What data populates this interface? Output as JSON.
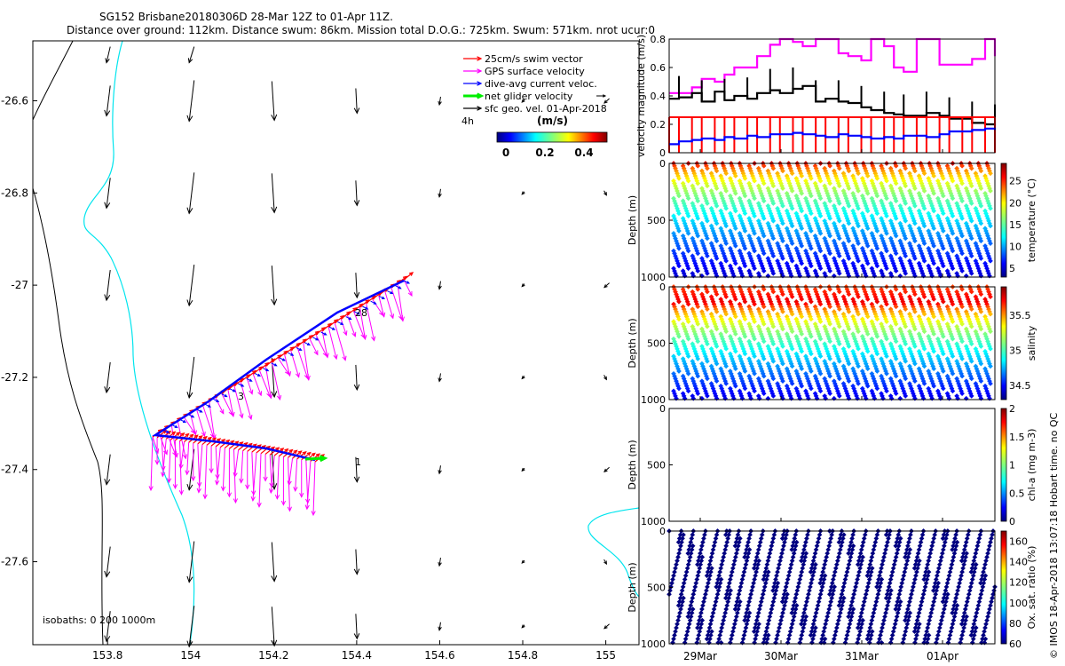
{
  "header": {
    "line1": "SG152 Brisbane20180306D 28-Mar 12Z to 01-Apr 11Z.",
    "line2": "Distance over ground: 112km. Distance swum: 86km. Mission total D.O.G.: 725km. Swum: 571km. nrot ucur:0"
  },
  "credit": "© IMOS 18-Apr-2018 13:07:18 Hobart time. no QC",
  "map": {
    "lon_ticks": [
      "153.8",
      "154",
      "154.2",
      "154.4",
      "154.6",
      "154.8",
      "155"
    ],
    "lat_ticks": [
      "-26.6",
      "-26.8",
      "-27",
      "-27.2",
      "-27.4",
      "-27.6"
    ],
    "lon_range": [
      153.62,
      155.08
    ],
    "lat_range": [
      -27.78,
      -26.47
    ],
    "isobath_label": "isobaths: 0   200  1000m",
    "time_markers": [
      "28",
      "3",
      "1"
    ],
    "legend": [
      {
        "label": "25cm/s swim vector",
        "color": "#ff0000"
      },
      {
        "label": "GPS surface velocity",
        "color": "#ff00ff"
      },
      {
        "label": "dive-avg current veloc.",
        "color": "#0000ff"
      },
      {
        "label": "net glider velocity",
        "color": "#00ee00"
      },
      {
        "label": "sfc geo. vel. 01-Apr-2018",
        "color": "#000000"
      }
    ],
    "legend_extra": "4h",
    "colorbar": {
      "title": "(m/s)",
      "ticks": [
        "0",
        "0.2",
        "0.4"
      ]
    }
  },
  "time_axis": {
    "ticks": [
      "29Mar",
      "30Mar",
      "31Mar",
      "01Apr"
    ]
  },
  "chart_data": [
    {
      "type": "line",
      "title": "",
      "ylabel": "velocity magnitude (m/s)",
      "ylim": [
        0,
        0.8
      ],
      "yticks": [
        "0",
        "0.2",
        "0.4",
        "0.6",
        "0.8"
      ],
      "x": [
        0,
        0.03,
        0.07,
        0.1,
        0.14,
        0.17,
        0.2,
        0.24,
        0.27,
        0.31,
        0.34,
        0.38,
        0.41,
        0.45,
        0.48,
        0.52,
        0.55,
        0.59,
        0.62,
        0.66,
        0.69,
        0.72,
        0.76,
        0.79,
        0.83,
        0.86,
        0.9,
        0.93,
        0.97,
        1.0
      ],
      "series": [
        {
          "color": "#ff00ff",
          "values": [
            0.42,
            0.42,
            0.46,
            0.52,
            0.5,
            0.55,
            0.6,
            0.6,
            0.68,
            0.76,
            0.8,
            0.78,
            0.75,
            0.8,
            0.8,
            0.7,
            0.68,
            0.65,
            0.8,
            0.75,
            0.6,
            0.57,
            0.8,
            0.8,
            0.62,
            0.62,
            0.62,
            0.66,
            0.8,
            0.68
          ]
        },
        {
          "color": "#000000",
          "values": [
            0.38,
            0.39,
            0.42,
            0.36,
            0.43,
            0.37,
            0.4,
            0.38,
            0.42,
            0.44,
            0.42,
            0.45,
            0.47,
            0.36,
            0.38,
            0.36,
            0.35,
            0.32,
            0.3,
            0.28,
            0.27,
            0.26,
            0.26,
            0.28,
            0.26,
            0.24,
            0.24,
            0.21,
            0.2,
            0.19
          ]
        },
        {
          "color": "#ff0000",
          "values": [
            0.25,
            0.25,
            0.25,
            0.25,
            0.25,
            0.25,
            0.25,
            0.25,
            0.25,
            0.25,
            0.25,
            0.25,
            0.25,
            0.25,
            0.25,
            0.25,
            0.25,
            0.25,
            0.25,
            0.25,
            0.25,
            0.25,
            0.25,
            0.25,
            0.25,
            0.25,
            0.25,
            0.25,
            0.25,
            0.25
          ]
        },
        {
          "color": "#0000ff",
          "values": [
            0.06,
            0.08,
            0.09,
            0.1,
            0.09,
            0.11,
            0.1,
            0.12,
            0.11,
            0.13,
            0.13,
            0.14,
            0.13,
            0.12,
            0.11,
            0.13,
            0.12,
            0.11,
            0.1,
            0.11,
            0.1,
            0.12,
            0.12,
            0.11,
            0.13,
            0.15,
            0.15,
            0.16,
            0.17,
            0.16
          ]
        }
      ]
    },
    {
      "type": "scatter",
      "ylabel": "Depth (m)",
      "clabel": "temperature (°C)",
      "ylim": [
        1000,
        0
      ],
      "yticks": [
        "0",
        "500",
        "1000"
      ],
      "cticks": [
        "5",
        "10",
        "15",
        "20",
        "25"
      ],
      "crange": [
        3,
        29
      ]
    },
    {
      "type": "scatter",
      "ylabel": "Depth (m)",
      "clabel": "salinity",
      "ylim": [
        1000,
        0
      ],
      "yticks": [
        "0",
        "500",
        "1000"
      ],
      "cticks": [
        "34.5",
        "35",
        "35.5"
      ],
      "crange": [
        34.3,
        35.9
      ]
    },
    {
      "type": "scatter",
      "ylabel": "Depth (m)",
      "clabel": "chl-a (mg m-3)",
      "ylim": [
        1000,
        0
      ],
      "yticks": [
        "0",
        "500",
        "1000"
      ],
      "cticks": [
        "0",
        "0.5",
        "1",
        "1.5",
        "2"
      ],
      "crange": [
        0,
        2
      ]
    },
    {
      "type": "scatter",
      "ylabel": "Depth (m)",
      "clabel": "Ox. sat. ratio (%)",
      "ylim": [
        1000,
        0
      ],
      "yticks": [
        "0",
        "500",
        "1000"
      ],
      "cticks": [
        "60",
        "80",
        "100",
        "120",
        "140",
        "160"
      ],
      "crange": [
        60,
        170
      ]
    }
  ]
}
